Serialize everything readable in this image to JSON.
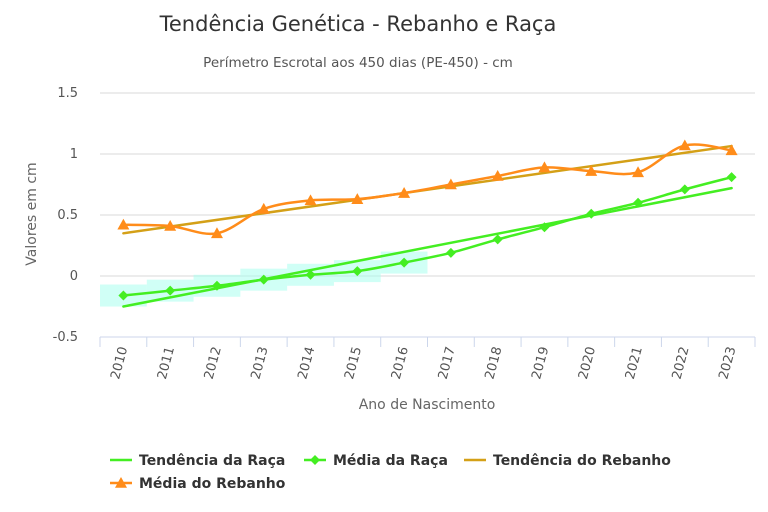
{
  "chart_data": {
    "type": "line",
    "title": "Tendência Genética - Rebanho e Raça",
    "subtitle": "Perímetro Escrotal aos 450 dias (PE-450) - cm",
    "xlabel": "Ano de Nascimento",
    "ylabel": "Valores em cm",
    "categories": [
      "2010",
      "2011",
      "2012",
      "2013",
      "2014",
      "2015",
      "2016",
      "2017",
      "2018",
      "2019",
      "2020",
      "2021",
      "2022",
      "2023"
    ],
    "ylim": [
      -0.5,
      1.5
    ],
    "yticks": [
      "-0.5",
      "0",
      "0.5",
      "1",
      "1.5"
    ],
    "grid": true,
    "legend_position": "bottom-left",
    "series": [
      {
        "name": "Tendência da Raça",
        "color": "#44ee22",
        "kind": "trend",
        "values": [
          -0.25,
          -0.175,
          -0.1,
          -0.025,
          0.05,
          0.125,
          0.2,
          0.27,
          0.345,
          0.42,
          0.495,
          0.57,
          0.645,
          0.72
        ]
      },
      {
        "name": "Média da Raça",
        "color": "#44ee22",
        "kind": "line-diamond",
        "band_color": "#aaffee",
        "values": [
          -0.16,
          -0.12,
          -0.08,
          -0.03,
          0.01,
          0.04,
          0.11,
          0.19,
          0.3,
          0.4,
          0.51,
          0.6,
          0.71,
          0.81
        ]
      },
      {
        "name": "Tendência do Rebanho",
        "color": "#d4a017",
        "kind": "trend",
        "values": [
          0.35,
          0.405,
          0.46,
          0.515,
          0.57,
          0.625,
          0.68,
          0.735,
          0.79,
          0.845,
          0.9,
          0.955,
          1.01,
          1.065
        ]
      },
      {
        "name": "Média do Rebanho",
        "color": "#ff8c1a",
        "kind": "line-triangle",
        "values": [
          0.42,
          0.41,
          0.35,
          0.55,
          0.62,
          0.63,
          0.68,
          0.75,
          0.82,
          0.89,
          0.86,
          0.85,
          1.07,
          1.03
        ]
      }
    ]
  }
}
